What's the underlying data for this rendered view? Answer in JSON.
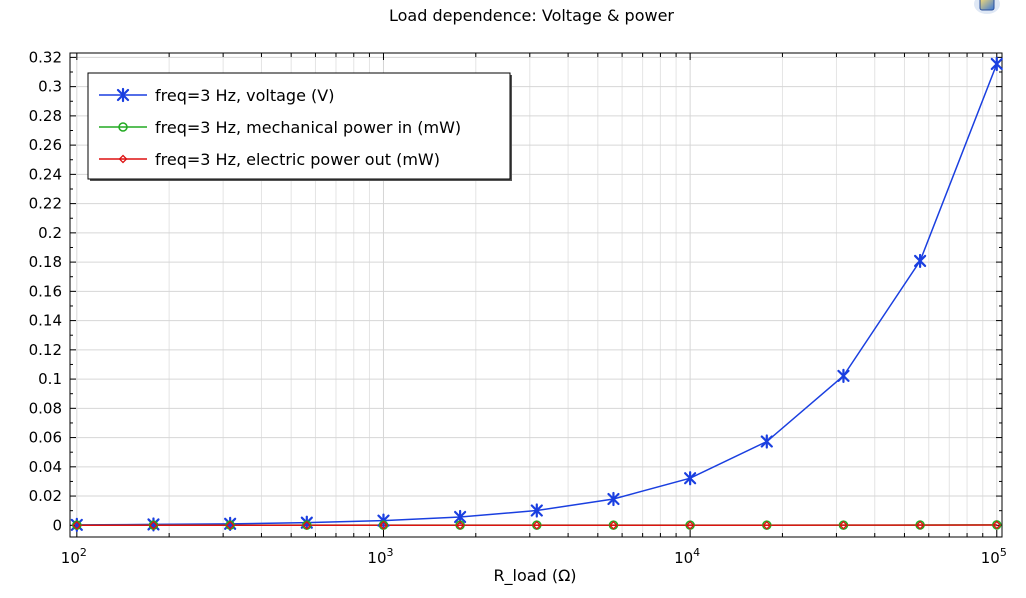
{
  "chart_data": {
    "type": "line",
    "title": "Load dependence: Voltage & power",
    "xlabel": "R_load (Ω)",
    "ylabel": "",
    "xscale": "log",
    "xlim": [
      95,
      104000
    ],
    "ylim": [
      -0.008,
      0.323
    ],
    "yticks": [
      0,
      0.02,
      0.04,
      0.06,
      0.08,
      0.1,
      0.12,
      0.14,
      0.16,
      0.18,
      0.2,
      0.22,
      0.24,
      0.26,
      0.28,
      0.3,
      0.32
    ],
    "ytick_labels": [
      "0",
      "0.02",
      "0.04",
      "0.06",
      "0.08",
      "0.1",
      "0.12",
      "0.14",
      "0.16",
      "0.18",
      "0.2",
      "0.22",
      "0.24",
      "0.26",
      "0.28",
      "0.3",
      "0.32"
    ],
    "xticks": [
      100,
      1000,
      10000,
      100000
    ],
    "xtick_labels": [
      {
        "base": "10",
        "exp": "2"
      },
      {
        "base": "10",
        "exp": "3"
      },
      {
        "base": "10",
        "exp": "4"
      },
      {
        "base": "10",
        "exp": "5"
      }
    ],
    "grid": true,
    "legend_position": "top-left",
    "x": [
      100,
      177.8,
      316.2,
      562.3,
      1000,
      1778,
      3162,
      5623,
      10000,
      17783,
      31623,
      56234,
      100000
    ],
    "series": [
      {
        "name": "freq=3 Hz, voltage (V)",
        "color": "#1a3fe0",
        "marker": "asterisk",
        "values": [
          0.0003,
          0.0006,
          0.001,
          0.0018,
          0.0032,
          0.0057,
          0.0101,
          0.018,
          0.0322,
          0.0573,
          0.1022,
          0.1808,
          0.3155
        ]
      },
      {
        "name": "freq=3 Hz, mechanical power in (mW)",
        "color": "#22aa22",
        "marker": "circle",
        "values": [
          0.0001,
          0.0001,
          0.0001,
          0.0001,
          0.0001,
          0.0001,
          0.0001,
          0.0001,
          0.0001,
          0.0001,
          0.0001,
          0.0002,
          0.0003
        ]
      },
      {
        "name": "freq=3 Hz, electric power out (mW)",
        "color": "#dd1111",
        "marker": "diamond",
        "values": [
          0.0,
          0.0,
          0.0,
          0.0,
          0.0,
          0.0,
          0.0,
          0.0,
          0.0,
          0.0,
          0.0001,
          0.0001,
          0.0002
        ]
      }
    ]
  }
}
